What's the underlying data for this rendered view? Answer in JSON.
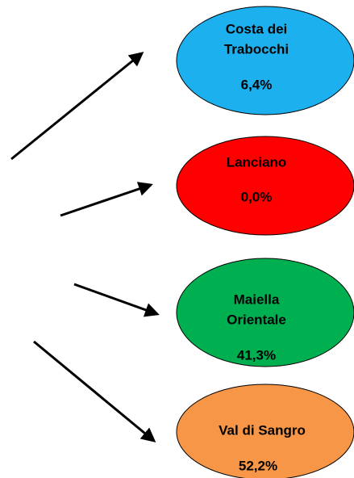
{
  "nodes": [
    {
      "label": [
        "Costa dei",
        "Trabocchi"
      ],
      "value": "6,4%"
    },
    {
      "label": [
        "Lanciano"
      ],
      "value": "0,0%"
    },
    {
      "label": [
        "Maiella",
        "Orientale"
      ],
      "value": "41,3%"
    },
    {
      "label": [
        "Val di Sangro"
      ],
      "value": "52,2%"
    }
  ]
}
